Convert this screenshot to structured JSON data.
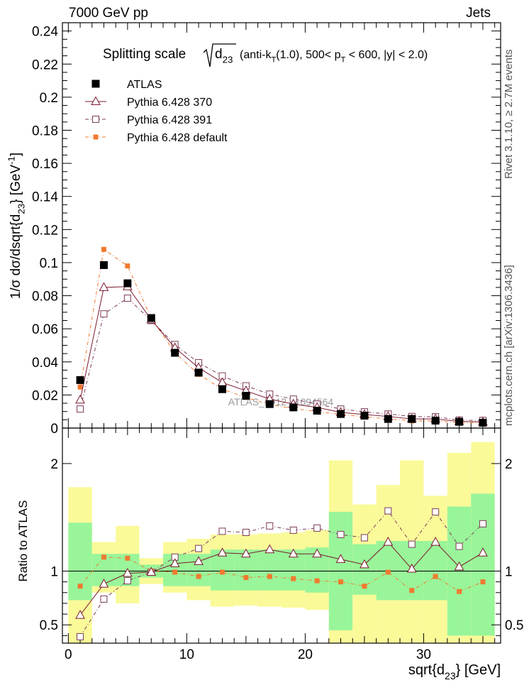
{
  "header": {
    "left": "7000 GeV pp",
    "right": "Jets"
  },
  "side_labels": {
    "rivet": "Rivet 3.1.10, ≥ 2.7M events",
    "mcplots": "mcplots.cern.ch [arXiv:1306.3436]"
  },
  "watermark": "ATLAS_2012_I1094564",
  "chart_data": [
    {
      "type": "scatter",
      "title": {
        "main": "Splitting scale",
        "obs": "d",
        "obs_sub": "23",
        "cond_a": "(anti-k",
        "cond_a_sub": "T",
        "cond_b": "(1.0), 500< p",
        "cond_b_sub": "T",
        "cond_c": "< 600, |y| < 2.0)"
      },
      "ylabel": {
        "a": "1/σ dσ/dsqrt{d",
        "sub": "23",
        "b": "} [GeV",
        "sup": "-1",
        "c": "]"
      },
      "xlim": [
        -0.5,
        36.5
      ],
      "ylim": [
        0,
        0.245
      ],
      "y_ticks": [
        0,
        0.02,
        0.04,
        0.06,
        0.08,
        0.1,
        0.12,
        0.14,
        0.16,
        0.18,
        0.2,
        0.22,
        0.24
      ],
      "y_tick_labels": [
        "0",
        "0.02",
        "0.04",
        "0.06",
        "0.08",
        "0.1",
        "0.12",
        "0.14",
        "0.16",
        "0.18",
        "0.2",
        "0.22",
        "0.24"
      ],
      "x": [
        1,
        3,
        5,
        7,
        9,
        11,
        13,
        15,
        17,
        19,
        21,
        23,
        25,
        27,
        29,
        31,
        33,
        35
      ],
      "series": [
        {
          "name": "ATLAS",
          "color": "#000000",
          "marker": "square-filled",
          "values": [
            0.029,
            0.0985,
            0.0875,
            0.0665,
            0.0455,
            0.0335,
            0.0235,
            0.0195,
            0.0145,
            0.0125,
            0.0105,
            0.0085,
            0.0075,
            0.0055,
            0.0055,
            0.0045,
            0.0038,
            0.0032
          ]
        },
        {
          "name": "Pythia 6.428 370",
          "color": "#7a1a2e",
          "marker": "triangle-open",
          "dash": "solid",
          "values": [
            0.017,
            0.085,
            0.0855,
            0.0655,
            0.0485,
            0.0365,
            0.0275,
            0.0225,
            0.0175,
            0.0145,
            0.0125,
            0.0095,
            0.0082,
            0.007,
            0.0055,
            0.0055,
            0.004,
            0.0037
          ]
        },
        {
          "name": "Pythia 6.428 391",
          "color": "#7a3a5a",
          "marker": "square-open",
          "dash": "5,3,1,3",
          "values": [
            0.0115,
            0.069,
            0.0785,
            0.065,
            0.0505,
            0.0395,
            0.0315,
            0.0255,
            0.0205,
            0.0175,
            0.0145,
            0.0115,
            0.0098,
            0.0085,
            0.007,
            0.0068,
            0.0048,
            0.0046
          ]
        },
        {
          "name": "Pythia 6.428 default",
          "color": "#f07a30",
          "marker": "square-filled-small",
          "dash": "5,3,1,3",
          "values": [
            0.0248,
            0.108,
            0.098,
            0.0665,
            0.0455,
            0.0325,
            0.0235,
            0.0185,
            0.0142,
            0.0118,
            0.01,
            0.0082,
            0.0068,
            0.0055,
            0.0044,
            0.0043,
            0.0032,
            0.0031
          ]
        }
      ]
    },
    {
      "type": "scatter",
      "ylabel": "Ratio to ATLAS",
      "xlabel": {
        "a": "sqrt{d",
        "sub": "23",
        "b": "} [GeV]"
      },
      "xlim": [
        -0.5,
        36.5
      ],
      "ylim": [
        0.33,
        2.33
      ],
      "x_ticks": [
        0,
        10,
        20,
        30
      ],
      "x_tick_labels": [
        "0",
        "10",
        "20",
        "30"
      ],
      "y_ticks": [
        0.5,
        1,
        2
      ],
      "y_tick_labels": [
        "0.5",
        "1",
        "2"
      ],
      "reference_line": 1,
      "x": [
        1,
        3,
        5,
        7,
        9,
        11,
        13,
        15,
        17,
        19,
        21,
        23,
        25,
        27,
        29,
        31,
        33,
        35
      ],
      "bins": [
        [
          0,
          2
        ],
        [
          2,
          4
        ],
        [
          4,
          6
        ],
        [
          6,
          8
        ],
        [
          8,
          10
        ],
        [
          10,
          12
        ],
        [
          12,
          14
        ],
        [
          14,
          16
        ],
        [
          16,
          18
        ],
        [
          18,
          20
        ],
        [
          20,
          22
        ],
        [
          22,
          24
        ],
        [
          24,
          26
        ],
        [
          26,
          28
        ],
        [
          28,
          30
        ],
        [
          30,
          32
        ],
        [
          32,
          34
        ],
        [
          34,
          36
        ]
      ],
      "band_stat": {
        "color": "#99f599",
        "low": [
          0.73,
          0.86,
          0.86,
          0.94,
          0.86,
          0.86,
          0.82,
          0.82,
          0.82,
          0.82,
          0.8,
          0.45,
          0.78,
          0.73,
          0.73,
          0.73,
          0.4,
          0.4
        ],
        "high": [
          1.45,
          1.16,
          1.16,
          1.06,
          1.16,
          1.16,
          1.2,
          1.2,
          1.2,
          1.2,
          1.22,
          1.55,
          1.25,
          1.28,
          1.28,
          1.28,
          1.6,
          1.72
        ]
      },
      "band_total": {
        "color": "#fafa99",
        "low": [
          0.33,
          0.8,
          0.7,
          0.88,
          0.8,
          0.73,
          0.67,
          0.68,
          0.67,
          0.66,
          0.64,
          0.33,
          0.33,
          0.33,
          0.33,
          0.33,
          0.33,
          0.33
        ],
        "high": [
          1.78,
          1.27,
          1.42,
          1.12,
          1.27,
          1.3,
          1.34,
          1.34,
          1.35,
          1.36,
          1.38,
          2.03,
          1.62,
          1.8,
          2.03,
          1.7,
          2.1,
          2.2
        ]
      },
      "series": [
        {
          "name": "Pythia 6.428 370",
          "values": [
            0.59,
            0.88,
            0.98,
            0.99,
            1.07,
            1.09,
            1.17,
            1.16,
            1.2,
            1.16,
            1.16,
            1.11,
            1.06,
            1.27,
            1.02,
            1.27,
            1.04,
            1.17
          ]
        },
        {
          "name": "Pythia 6.428 391",
          "values": [
            0.39,
            0.74,
            0.91,
            0.99,
            1.13,
            1.21,
            1.37,
            1.36,
            1.42,
            1.38,
            1.4,
            1.34,
            1.31,
            1.56,
            1.25,
            1.55,
            1.23,
            1.44
          ]
        },
        {
          "name": "Pythia 6.428 default",
          "values": [
            0.86,
            1.13,
            1.12,
            1.0,
            0.99,
            0.95,
            0.99,
            0.94,
            0.95,
            0.93,
            0.91,
            0.9,
            0.86,
            0.99,
            0.82,
            0.95,
            0.81,
            0.9
          ]
        }
      ]
    }
  ]
}
